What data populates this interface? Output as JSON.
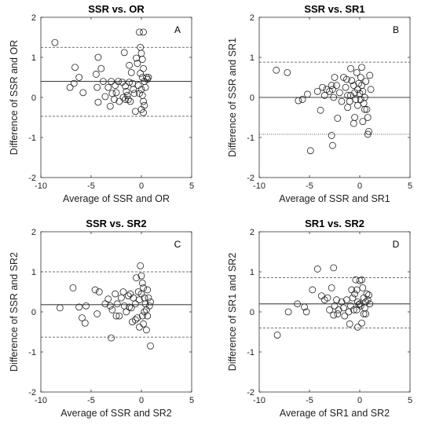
{
  "chart_data": [
    {
      "type": "scatter",
      "title": "SSR vs. OR",
      "panel_label": "A",
      "xlabel": "Average of SSR and OR",
      "ylabel": "Difference of SSR and OR",
      "xlim": [
        -10,
        5
      ],
      "ylim": [
        -2,
        2
      ],
      "xticks": [
        -10,
        -5,
        0,
        5
      ],
      "yticks": [
        -2,
        -1,
        0,
        1,
        2
      ],
      "grid": false,
      "lines": [
        {
          "y": 1.25,
          "style": "dashed"
        },
        {
          "y": 0.4,
          "style": "solid"
        },
        {
          "y": -0.47,
          "style": "dashed"
        }
      ],
      "points": [
        [
          -8.6,
          1.37
        ],
        [
          -6.6,
          0.75
        ],
        [
          -6.7,
          0.35
        ],
        [
          -7.1,
          0.25
        ],
        [
          -6.2,
          0.5
        ],
        [
          -5.8,
          0.12
        ],
        [
          -4.3,
          1.0
        ],
        [
          -4.0,
          0.72
        ],
        [
          -4.5,
          0.58
        ],
        [
          -4.4,
          0.25
        ],
        [
          -3.8,
          0.4
        ],
        [
          -4.3,
          -0.12
        ],
        [
          -3.6,
          0.02
        ],
        [
          -3.3,
          0.25
        ],
        [
          -3.0,
          0.4
        ],
        [
          -2.9,
          0.1
        ],
        [
          -2.7,
          -0.05
        ],
        [
          -2.5,
          0.12
        ],
        [
          -3.1,
          -0.22
        ],
        [
          -2.3,
          0.4
        ],
        [
          -1.7,
          1.12
        ],
        [
          -1.9,
          0.38
        ],
        [
          -1.6,
          0.28
        ],
        [
          -1.5,
          0.15
        ],
        [
          -1.4,
          0.05
        ],
        [
          -1.3,
          -0.05
        ],
        [
          -1.2,
          0.8
        ],
        [
          -1.0,
          0.62
        ],
        [
          -1.2,
          0.38
        ],
        [
          -0.9,
          0.35
        ],
        [
          -0.8,
          0.2
        ],
        [
          -0.7,
          0.1
        ],
        [
          -0.5,
          0.98
        ],
        [
          -0.4,
          0.85
        ],
        [
          -0.6,
          -0.35
        ],
        [
          -0.3,
          0.3
        ],
        [
          -0.2,
          0.1
        ],
        [
          -0.1,
          1.25
        ],
        [
          0.0,
          1.1
        ],
        [
          0.1,
          0.95
        ],
        [
          -0.1,
          0.6
        ],
        [
          0.1,
          0.5
        ],
        [
          0.2,
          0.72
        ],
        [
          0.3,
          0.4
        ],
        [
          0.4,
          0.25
        ],
        [
          0.5,
          0.5
        ],
        [
          0.0,
          0.2
        ],
        [
          0.1,
          0.05
        ],
        [
          0.2,
          -0.1
        ],
        [
          0.3,
          -0.2
        ],
        [
          0.0,
          -0.3
        ],
        [
          0.2,
          -0.38
        ],
        [
          -0.2,
          1.63
        ],
        [
          0.2,
          1.63
        ],
        [
          -1.6,
          -0.05
        ],
        [
          -2.2,
          -0.1
        ],
        [
          -1.1,
          -0.1
        ],
        [
          -1.8,
          0.0
        ],
        [
          0.6,
          0.45
        ],
        [
          0.7,
          0.5
        ],
        [
          -2.6,
          0.3
        ]
      ]
    },
    {
      "type": "scatter",
      "title": "SSR vs. SR1",
      "panel_label": "B",
      "xlabel": "Average of SSR and SR1",
      "ylabel": "Difference of SSR and SR1",
      "xlim": [
        -10,
        5
      ],
      "ylim": [
        -2,
        2
      ],
      "xticks": [
        -10,
        -5,
        0,
        5
      ],
      "yticks": [
        -2,
        -1,
        0,
        1,
        2
      ],
      "grid": false,
      "lines": [
        {
          "y": 0.88,
          "style": "dashed"
        },
        {
          "y": 0.0,
          "style": "solid"
        },
        {
          "y": -0.92,
          "style": "dotted"
        }
      ],
      "points": [
        [
          -8.3,
          0.68
        ],
        [
          -7.2,
          0.62
        ],
        [
          -6.1,
          -0.08
        ],
        [
          -5.7,
          -0.05
        ],
        [
          -5.2,
          0.08
        ],
        [
          -4.9,
          -1.33
        ],
        [
          -4.2,
          0.15
        ],
        [
          -3.9,
          -0.32
        ],
        [
          -3.7,
          0.25
        ],
        [
          -3.5,
          0.05
        ],
        [
          -3.3,
          0.2
        ],
        [
          -3.0,
          0.15
        ],
        [
          -2.8,
          0.3
        ],
        [
          -2.7,
          0.2
        ],
        [
          -2.5,
          0.5
        ],
        [
          -2.3,
          0.3
        ],
        [
          -2.6,
          0.0
        ],
        [
          -2.2,
          -0.52
        ],
        [
          -2.8,
          -0.95
        ],
        [
          -2.7,
          -1.2
        ],
        [
          -2.0,
          0.12
        ],
        [
          -1.8,
          -0.1
        ],
        [
          -1.6,
          0.5
        ],
        [
          -1.4,
          0.25
        ],
        [
          -1.2,
          0.05
        ],
        [
          -1.0,
          -0.1
        ],
        [
          -0.9,
          0.72
        ],
        [
          -0.8,
          0.42
        ],
        [
          -0.6,
          0.3
        ],
        [
          -0.5,
          0.12
        ],
        [
          -0.4,
          -0.05
        ],
        [
          -0.3,
          0.62
        ],
        [
          -0.2,
          0.2
        ],
        [
          -0.2,
          -0.2
        ],
        [
          -0.1,
          0.35
        ],
        [
          0.0,
          0.1
        ],
        [
          0.1,
          -0.05
        ],
        [
          0.2,
          0.3
        ],
        [
          0.3,
          0.15
        ],
        [
          0.4,
          -0.15
        ],
        [
          0.5,
          0.0
        ],
        [
          0.6,
          0.4
        ],
        [
          0.7,
          -0.3
        ],
        [
          0.8,
          -0.5
        ],
        [
          0.9,
          -0.85
        ],
        [
          0.8,
          -0.92
        ],
        [
          1.0,
          0.55
        ],
        [
          1.1,
          0.2
        ],
        [
          0.3,
          -0.6
        ],
        [
          -0.5,
          -0.5
        ],
        [
          -1.2,
          -0.25
        ],
        [
          -0.6,
          -0.65
        ],
        [
          0.1,
          0.5
        ],
        [
          -0.9,
          0.05
        ],
        [
          0.2,
          0.75
        ],
        [
          -1.3,
          0.45
        ],
        [
          0.5,
          -0.3
        ]
      ]
    },
    {
      "type": "scatter",
      "title": "SSR vs. SR2",
      "panel_label": "C",
      "xlabel": "Average of SSR and SR2",
      "ylabel": "Difference of SSR and SR2",
      "xlim": [
        -10,
        5
      ],
      "ylim": [
        -2,
        2
      ],
      "xticks": [
        -10,
        -5,
        0,
        5
      ],
      "yticks": [
        -2,
        -1,
        0,
        1,
        2
      ],
      "grid": false,
      "lines": [
        {
          "y": 1.0,
          "style": "dashed"
        },
        {
          "y": 0.18,
          "style": "solid"
        },
        {
          "y": -0.63,
          "style": "dashed"
        }
      ],
      "points": [
        [
          -8.1,
          0.1
        ],
        [
          -6.8,
          0.6
        ],
        [
          -6.2,
          0.12
        ],
        [
          -5.9,
          -0.15
        ],
        [
          -5.6,
          -0.28
        ],
        [
          -5.5,
          0.15
        ],
        [
          -4.6,
          0.55
        ],
        [
          -4.2,
          0.5
        ],
        [
          -4.4,
          -0.05
        ],
        [
          -3.6,
          0.2
        ],
        [
          -3.3,
          0.32
        ],
        [
          -3.1,
          0.15
        ],
        [
          -2.9,
          0.05
        ],
        [
          -3.0,
          -0.65
        ],
        [
          -2.6,
          0.45
        ],
        [
          -2.4,
          0.2
        ],
        [
          -2.2,
          -0.1
        ],
        [
          -2.0,
          0.35
        ],
        [
          -1.8,
          0.5
        ],
        [
          -1.7,
          0.15
        ],
        [
          -1.5,
          0.0
        ],
        [
          -1.3,
          0.4
        ],
        [
          -1.1,
          0.45
        ],
        [
          -1.0,
          0.1
        ],
        [
          -0.9,
          -0.25
        ],
        [
          -0.8,
          0.35
        ],
        [
          -0.6,
          0.2
        ],
        [
          -0.5,
          0.85
        ],
        [
          -0.4,
          -0.15
        ],
        [
          -0.3,
          0.5
        ],
        [
          -0.2,
          0.3
        ],
        [
          -0.1,
          1.15
        ],
        [
          0.0,
          0.9
        ],
        [
          0.1,
          0.72
        ],
        [
          0.0,
          0.45
        ],
        [
          0.2,
          0.6
        ],
        [
          0.3,
          0.35
        ],
        [
          0.4,
          0.2
        ],
        [
          0.5,
          0.05
        ],
        [
          0.6,
          -0.1
        ],
        [
          0.7,
          0.35
        ],
        [
          0.8,
          0.15
        ],
        [
          0.9,
          -0.85
        ],
        [
          0.5,
          -0.45
        ],
        [
          0.2,
          -0.3
        ],
        [
          -0.2,
          -0.38
        ],
        [
          0.3,
          0.0
        ],
        [
          -0.6,
          -0.2
        ],
        [
          0.6,
          0.55
        ],
        [
          0.9,
          0.25
        ],
        [
          -1.2,
          0.12
        ],
        [
          -2.5,
          -0.1
        ],
        [
          0.1,
          -0.1
        ]
      ]
    },
    {
      "type": "scatter",
      "title": "SR1 vs. SR2",
      "panel_label": "D",
      "xlabel": "Average of SR1 and SR2",
      "ylabel": "Difference of SR1 and SR2",
      "xlim": [
        -10,
        5
      ],
      "ylim": [
        -2,
        2
      ],
      "xticks": [
        -10,
        -5,
        0,
        5
      ],
      "yticks": [
        -2,
        -1,
        0,
        1,
        2
      ],
      "grid": false,
      "lines": [
        {
          "y": 0.85,
          "style": "dashed"
        },
        {
          "y": 0.2,
          "style": "solid"
        },
        {
          "y": -0.4,
          "style": "dashed"
        }
      ],
      "points": [
        [
          -8.2,
          -0.58
        ],
        [
          -7.1,
          0.0
        ],
        [
          -6.2,
          0.2
        ],
        [
          -5.5,
          0.12
        ],
        [
          -5.3,
          0.0
        ],
        [
          -4.7,
          0.55
        ],
        [
          -4.2,
          1.07
        ],
        [
          -3.8,
          0.4
        ],
        [
          -3.5,
          0.3
        ],
        [
          -3.2,
          0.35
        ],
        [
          -3.0,
          0.05
        ],
        [
          -2.8,
          0.6
        ],
        [
          -2.6,
          1.1
        ],
        [
          -2.5,
          0.15
        ],
        [
          -2.3,
          0.3
        ],
        [
          -2.1,
          0.05
        ],
        [
          -2.6,
          -0.08
        ],
        [
          -2.2,
          -0.05
        ],
        [
          -1.8,
          0.25
        ],
        [
          -1.6,
          0.1
        ],
        [
          -1.3,
          0.3
        ],
        [
          -1.1,
          0.0
        ],
        [
          -0.9,
          0.15
        ],
        [
          -0.7,
          0.35
        ],
        [
          -0.6,
          0.05
        ],
        [
          -0.5,
          0.45
        ],
        [
          -0.4,
          0.8
        ],
        [
          -0.3,
          0.55
        ],
        [
          -0.2,
          0.25
        ],
        [
          -0.1,
          0.18
        ],
        [
          0.0,
          0.2
        ],
        [
          0.1,
          0.15
        ],
        [
          0.2,
          0.8
        ],
        [
          0.3,
          0.6
        ],
        [
          0.4,
          0.35
        ],
        [
          0.5,
          0.1
        ],
        [
          0.6,
          -0.05
        ],
        [
          0.7,
          0.45
        ],
        [
          0.8,
          0.3
        ],
        [
          0.9,
          0.42
        ],
        [
          1.0,
          0.2
        ],
        [
          0.2,
          -0.28
        ],
        [
          -0.2,
          -0.38
        ],
        [
          0.4,
          -0.05
        ],
        [
          -1.5,
          -0.1
        ],
        [
          -1.0,
          -0.3
        ],
        [
          0.0,
          0.78
        ],
        [
          -0.8,
          0.55
        ],
        [
          0.6,
          0.25
        ],
        [
          -0.3,
          0.05
        ]
      ]
    }
  ]
}
